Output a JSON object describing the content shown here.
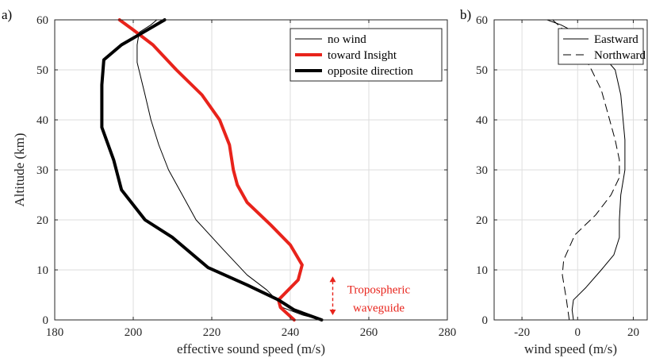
{
  "chart_data": [
    {
      "panel_label": "a)",
      "type": "line",
      "orientation": "profile",
      "xlabel": "effective sound speed (m/s)",
      "ylabel": "Altitude (km)",
      "xlim": [
        180,
        280
      ],
      "ylim": [
        0,
        60
      ],
      "xticks": [
        180,
        200,
        220,
        240,
        260,
        280
      ],
      "yticks": [
        0,
        10,
        20,
        30,
        40,
        50,
        60
      ],
      "grid": true,
      "legend": "top-right",
      "series": [
        {
          "name": "no wind",
          "color": "#000000",
          "style": "thin",
          "x": [
            248,
            243,
            238,
            236.5,
            234,
            229,
            223,
            216,
            212.5,
            209,
            206.5,
            204.5,
            203,
            201,
            201,
            201.5,
            204.5,
            206
          ],
          "y": [
            0,
            1,
            2.5,
            4,
            6,
            9,
            14,
            20,
            25,
            30,
            35,
            40,
            45,
            51.5,
            55,
            57.5,
            59,
            60
          ]
        },
        {
          "name": "toward Insight",
          "color": "#e8231b",
          "style": "thick",
          "x": [
            241,
            237.5,
            237,
            242,
            243,
            240,
            235,
            229,
            226.5,
            225.5,
            224.5,
            222,
            217.5,
            211,
            205,
            200,
            196.5
          ],
          "y": [
            0,
            2.5,
            4,
            8,
            11,
            15,
            19,
            23.5,
            27,
            30,
            35,
            40,
            45,
            50,
            55,
            58,
            60
          ]
        },
        {
          "name": "opposite direction",
          "color": "#000000",
          "style": "thick",
          "x": [
            248,
            241,
            237,
            229,
            219,
            210,
            203,
            197,
            195,
            192,
            192,
            192.5,
            197,
            202.5,
            208
          ],
          "y": [
            0,
            2,
            4,
            7,
            10.5,
            16.5,
            20,
            26,
            32,
            38.5,
            47,
            52,
            55,
            57.5,
            60
          ]
        }
      ],
      "annotation": {
        "lines": [
          "Tropospheric",
          "waveguide"
        ],
        "range_km": [
          0,
          9
        ],
        "x": 250,
        "color": "#e8231b"
      }
    },
    {
      "panel_label": "b)",
      "type": "line",
      "orientation": "profile",
      "xlabel": "wind speed (m/s)",
      "ylabel": "",
      "xlim": [
        -30,
        25
      ],
      "ylim": [
        0,
        60
      ],
      "xticks": [
        -20,
        0,
        20
      ],
      "yticks": [
        0,
        10,
        20,
        30,
        40,
        50,
        60
      ],
      "grid": true,
      "legend": "top-right",
      "series": [
        {
          "name": "Eastward",
          "color": "#000000",
          "style": "solid",
          "x": [
            -1.5,
            -2,
            -1.5,
            3,
            8.5,
            13,
            15,
            15,
            15.5,
            17,
            17,
            15.5,
            13.5,
            8,
            1,
            -6,
            -11
          ],
          "y": [
            0,
            2,
            4,
            6.5,
            10,
            13,
            16.5,
            20,
            25,
            30,
            36,
            45,
            50,
            53.5,
            57,
            59,
            60
          ]
        },
        {
          "name": "Northward",
          "color": "#000000",
          "style": "dashed",
          "x": [
            -3,
            -4,
            -5.5,
            -5,
            -1,
            6.5,
            12,
            15,
            15,
            13.5,
            11,
            8.5,
            5,
            1,
            -4,
            -9
          ],
          "y": [
            0,
            4,
            9,
            12,
            17,
            21,
            25,
            28.5,
            32,
            36,
            41,
            46,
            50,
            54,
            57.5,
            60
          ]
        }
      ]
    }
  ]
}
